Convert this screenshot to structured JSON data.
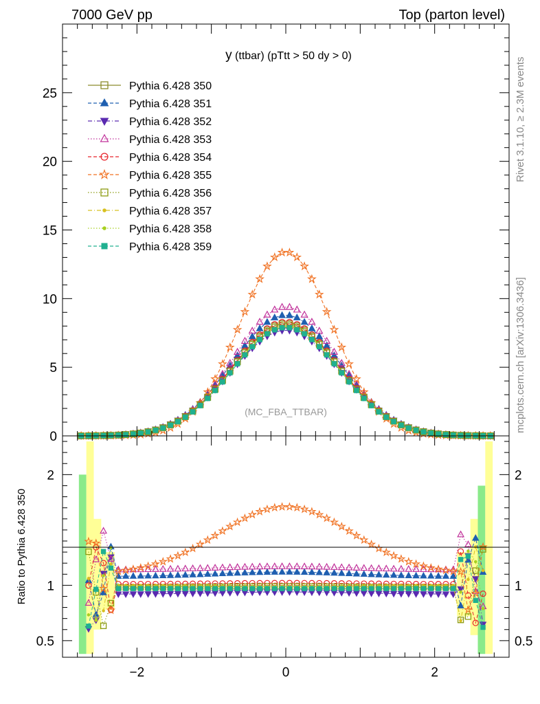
{
  "header": {
    "left": "7000 GeV pp",
    "right": "Top (parton level)"
  },
  "side_text": {
    "rivet": "Rivet 3.1.10, ≥ 2.3M events",
    "mcplots": "mcplots.cern.ch [arXiv:1306.3436]"
  },
  "chart_data": [
    {
      "type": "line",
      "panel": "main",
      "title": "y (ttbar) (pTtt > 50 dy > 0)",
      "title_main": "y",
      "title_rest": " (ttbar) (pTtt > 50 dy > 0)",
      "annotation": "(MC_FBA_TTBAR)",
      "xlim": [
        -3.0,
        3.0
      ],
      "ylim": [
        0,
        30
      ],
      "yticks": [
        0,
        5,
        10,
        15,
        20,
        25
      ],
      "ytick_labels": [
        "0",
        "5",
        "10",
        "15",
        "20",
        "25"
      ],
      "legend_position": "top-left",
      "series": [
        {
          "name": "Pythia 6.428 350",
          "color": "#8b8b2b",
          "marker": "square-open",
          "dash": "solid",
          "peak": 8.2,
          "sigma": 0.72
        },
        {
          "name": "Pythia 6.428 351",
          "color": "#1f5fb0",
          "marker": "triangle-up",
          "dash": "dashed",
          "peak": 8.8,
          "sigma": 0.72
        },
        {
          "name": "Pythia 6.428 352",
          "color": "#5a2ab0",
          "marker": "triangle-down",
          "dash": "dashdot",
          "peak": 7.7,
          "sigma": 0.74
        },
        {
          "name": "Pythia 6.428 353",
          "color": "#c0309a",
          "marker": "triangle-open",
          "dash": "dotted",
          "peak": 9.4,
          "sigma": 0.7
        },
        {
          "name": "Pythia 6.428 354",
          "color": "#e8232a",
          "marker": "circle-open",
          "dash": "dashed",
          "peak": 8.3,
          "sigma": 0.72
        },
        {
          "name": "Pythia 6.428 355",
          "color": "#f07020",
          "marker": "star-open",
          "dash": "dashed",
          "peak": 13.4,
          "sigma": 0.62
        },
        {
          "name": "Pythia 6.428 356",
          "color": "#8b9a10",
          "marker": "square-open",
          "dash": "dotted",
          "peak": 8.1,
          "sigma": 0.72
        },
        {
          "name": "Pythia 6.428 357",
          "color": "#d8c020",
          "marker": "dot",
          "dash": "dashdot",
          "peak": 8.0,
          "sigma": 0.72
        },
        {
          "name": "Pythia 6.428 358",
          "color": "#a8d020",
          "marker": "dot",
          "dash": "dotted",
          "peak": 8.0,
          "sigma": 0.72
        },
        {
          "name": "Pythia 6.428 359",
          "color": "#20b090",
          "marker": "square-filled",
          "dash": "dashed",
          "peak": 7.9,
          "sigma": 0.72
        }
      ]
    },
    {
      "type": "line",
      "panel": "ratio",
      "ylabel": "Ratio to Pythia 6.428 350",
      "xlim": [
        -3.0,
        3.0
      ],
      "ylim": [
        0.35,
        2.35
      ],
      "yticks": [
        0.5,
        1,
        2
      ],
      "ytick_labels": [
        "0.5",
        "1",
        "2"
      ],
      "xticks": [
        -2,
        0,
        2
      ],
      "xtick_labels": [
        "−2",
        "0",
        "2"
      ],
      "series_ratio": [
        {
          "name": "Pythia 6.428 351",
          "base": 1.08,
          "center": 1.12
        },
        {
          "name": "Pythia 6.428 352",
          "base": 0.92,
          "center": 0.94
        },
        {
          "name": "Pythia 6.428 353",
          "base": 1.14,
          "center": 1.17
        },
        {
          "name": "Pythia 6.428 354",
          "base": 1.01,
          "center": 1.02
        },
        {
          "name": "Pythia 6.428 355",
          "base": 1.1,
          "center": 1.71
        },
        {
          "name": "Pythia 6.428 356",
          "base": 0.98,
          "center": 0.99
        },
        {
          "name": "Pythia 6.428 357",
          "base": 1.0,
          "center": 0.99
        },
        {
          "name": "Pythia 6.428 358",
          "base": 0.99,
          "center": 0.99
        },
        {
          "name": "Pythia 6.428 359",
          "base": 0.97,
          "center": 0.97
        }
      ]
    }
  ]
}
